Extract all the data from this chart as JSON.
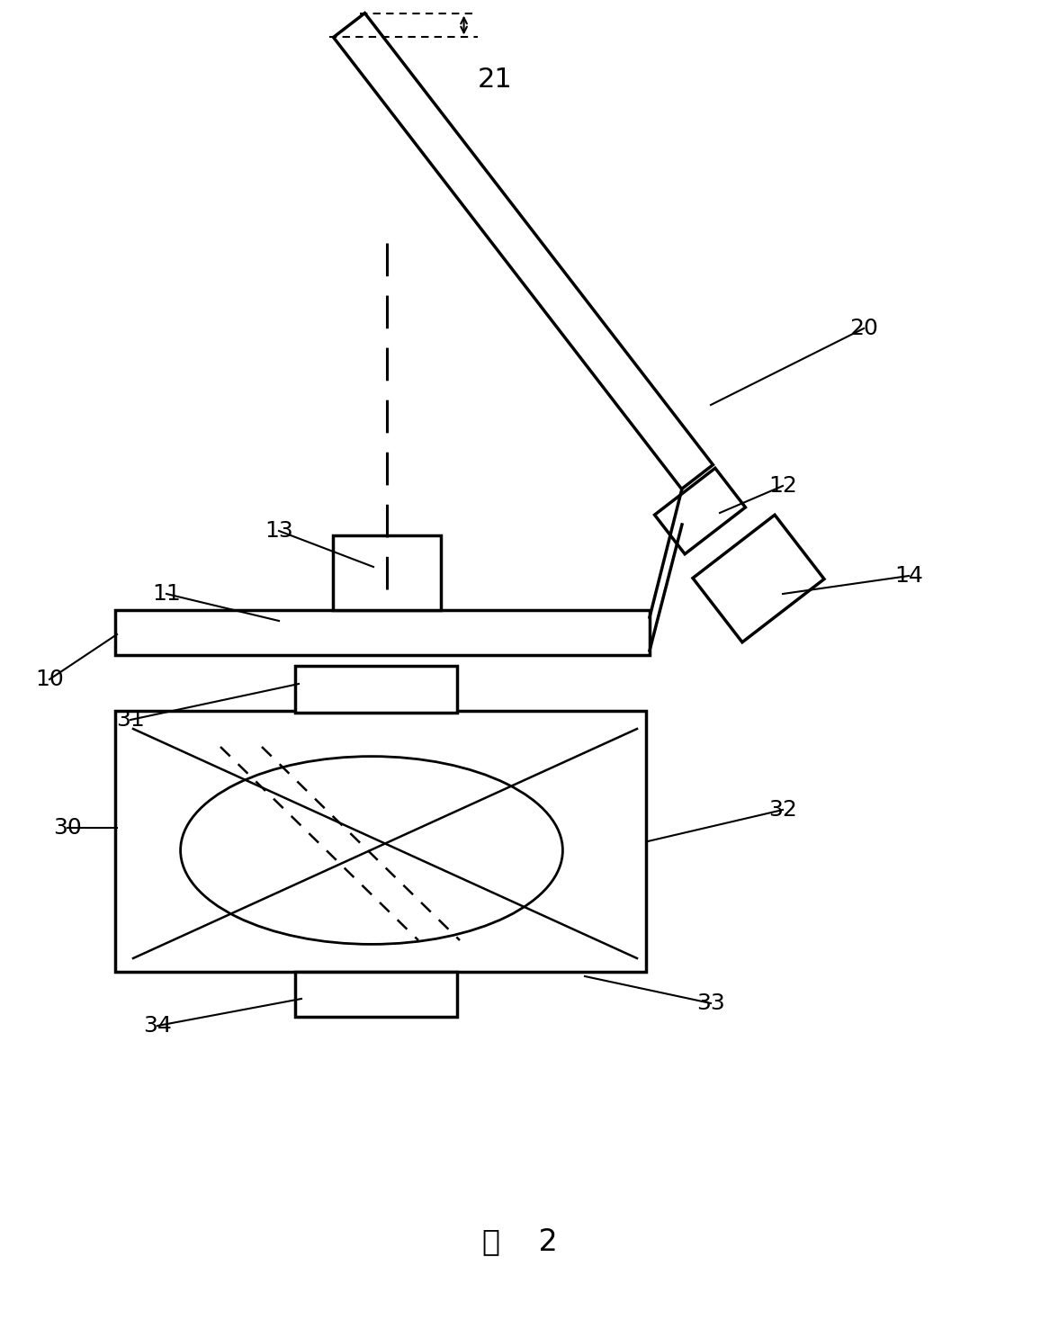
{
  "bg_color": "#ffffff",
  "lc": "#000000",
  "fig_title": "图    2",
  "title_fontsize": 24,
  "label_fontsize": 18
}
